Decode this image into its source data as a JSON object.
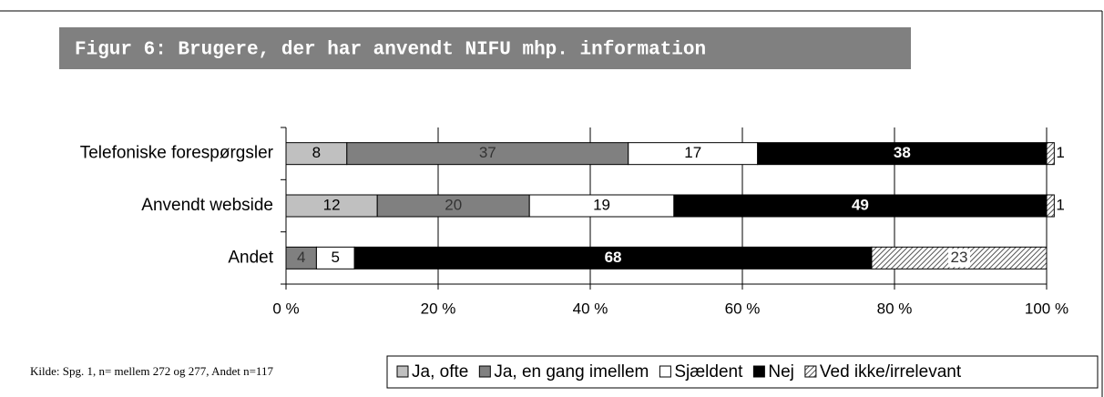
{
  "chart_data": {
    "type": "stacked_barh",
    "title": "Figur 6: Brugere, der har anvendt NIFU mhp. information",
    "source": "Kilde: Spg. 1, n= mellem 272 og 277, Andet n=117",
    "categories": [
      "Telefoniske forespørgsler",
      "Anvendt webside",
      "Andet"
    ],
    "series": [
      {
        "name": "Ja, ofte",
        "color": "#c0c0c0",
        "values": [
          8,
          12,
          null
        ]
      },
      {
        "name": "Ja, en gang imellem",
        "color": "#808080",
        "values": [
          37,
          20,
          4
        ]
      },
      {
        "name": "Sjældent",
        "color": "#ffffff",
        "values": [
          17,
          19,
          5
        ]
      },
      {
        "name": "Nej",
        "color": "#000000",
        "values": [
          38,
          49,
          68
        ]
      },
      {
        "name": "Ved ikke/irrelevant",
        "color": "#808080",
        "pattern": "hatch",
        "values": [
          1,
          1,
          23
        ]
      }
    ],
    "xlim": [
      0,
      100
    ],
    "xticks": [
      {
        "value": 0,
        "label": "0 %"
      },
      {
        "value": 20,
        "label": "20 %"
      },
      {
        "value": 40,
        "label": "40 %"
      },
      {
        "value": 60,
        "label": "60 %"
      },
      {
        "value": 80,
        "label": "80 %"
      },
      {
        "value": 100,
        "label": "100 %"
      }
    ],
    "grid": true
  }
}
